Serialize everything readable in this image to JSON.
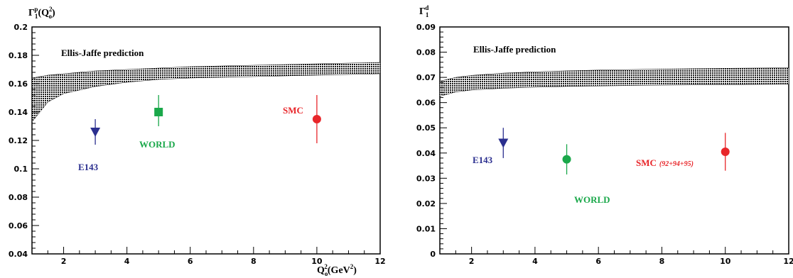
{
  "chart_data": [
    {
      "type": "scatter",
      "ylabel_main": "Γ",
      "ylabel_sup": "p",
      "ylabel_sub": "1",
      "ylabel_rest": "(Q",
      "ylabel_rest_sup": "2",
      "ylabel_rest_sub": "o",
      "ylabel_close": ")",
      "xlabel_main": "Q",
      "xlabel_sup": "2",
      "xlabel_sub": "o",
      "xlabel_rest": "(GeV",
      "xlabel_rest_sup": "2",
      "xlabel_close": ")",
      "xlim": [
        1,
        12
      ],
      "ylim": [
        0.04,
        0.2
      ],
      "xticks": [
        2,
        4,
        6,
        8,
        10,
        12
      ],
      "yticks": [
        "0.04",
        "0.06",
        "0.08",
        "0.1",
        "0.12",
        "0.14",
        "0.16",
        "0.18",
        "0.2"
      ],
      "band": {
        "label": "Ellis-Jaffe prediction",
        "x": [
          1,
          1.5,
          2,
          3,
          4,
          5,
          6,
          8,
          10,
          12
        ],
        "upper": [
          0.164,
          0.166,
          0.167,
          0.169,
          0.17,
          0.171,
          0.172,
          0.173,
          0.174,
          0.175
        ],
        "lower": [
          0.133,
          0.147,
          0.153,
          0.158,
          0.161,
          0.163,
          0.164,
          0.165,
          0.166,
          0.167
        ]
      },
      "series": [
        {
          "name": "E143",
          "x": 3,
          "y": 0.126,
          "err_lo": 0.009,
          "err_hi": 0.009,
          "marker": "triangle-down",
          "color": "#2b2f8f"
        },
        {
          "name": "WORLD",
          "x": 5,
          "y": 0.14,
          "err_lo": 0.01,
          "err_hi": 0.012,
          "marker": "square",
          "color": "#1aa84a"
        },
        {
          "name": "SMC",
          "x": 10,
          "y": 0.135,
          "err_lo": 0.017,
          "err_hi": 0.017,
          "marker": "circle",
          "color": "#e8262a"
        }
      ]
    },
    {
      "type": "scatter",
      "ylabel_main": "Γ",
      "ylabel_sup": "d",
      "ylabel_sub": "1",
      "xlim": [
        1,
        12
      ],
      "ylim": [
        0,
        0.09
      ],
      "xticks": [
        2,
        4,
        6,
        8,
        10,
        12
      ],
      "yticks": [
        "0",
        "0.01",
        "0.02",
        "0.03",
        "0.04",
        "0.05",
        "0.06",
        "0.07",
        "0.08",
        "0.09"
      ],
      "band": {
        "label": "Ellis-Jaffe prediction",
        "x": [
          1,
          1.5,
          2,
          3,
          4,
          5,
          6,
          8,
          10,
          12
        ],
        "upper": [
          0.0685,
          0.07,
          0.0708,
          0.0717,
          0.0722,
          0.0726,
          0.0729,
          0.0733,
          0.0736,
          0.0738
        ],
        "lower": [
          0.0625,
          0.0642,
          0.065,
          0.0657,
          0.0661,
          0.0664,
          0.0666,
          0.0669,
          0.0671,
          0.0673
        ]
      },
      "series": [
        {
          "name": "E143",
          "x": 3,
          "y": 0.044,
          "err_lo": 0.006,
          "err_hi": 0.006,
          "marker": "triangle-down",
          "color": "#2b2f8f"
        },
        {
          "name": "WORLD",
          "x": 5,
          "y": 0.0375,
          "err_lo": 0.006,
          "err_hi": 0.006,
          "marker": "circle",
          "color": "#1aa84a"
        },
        {
          "name": "SMC",
          "name_suffix": "(92+94+95)",
          "x": 10,
          "y": 0.0405,
          "err_lo": 0.0075,
          "err_hi": 0.0075,
          "marker": "circle",
          "color": "#e8262a"
        }
      ]
    }
  ]
}
